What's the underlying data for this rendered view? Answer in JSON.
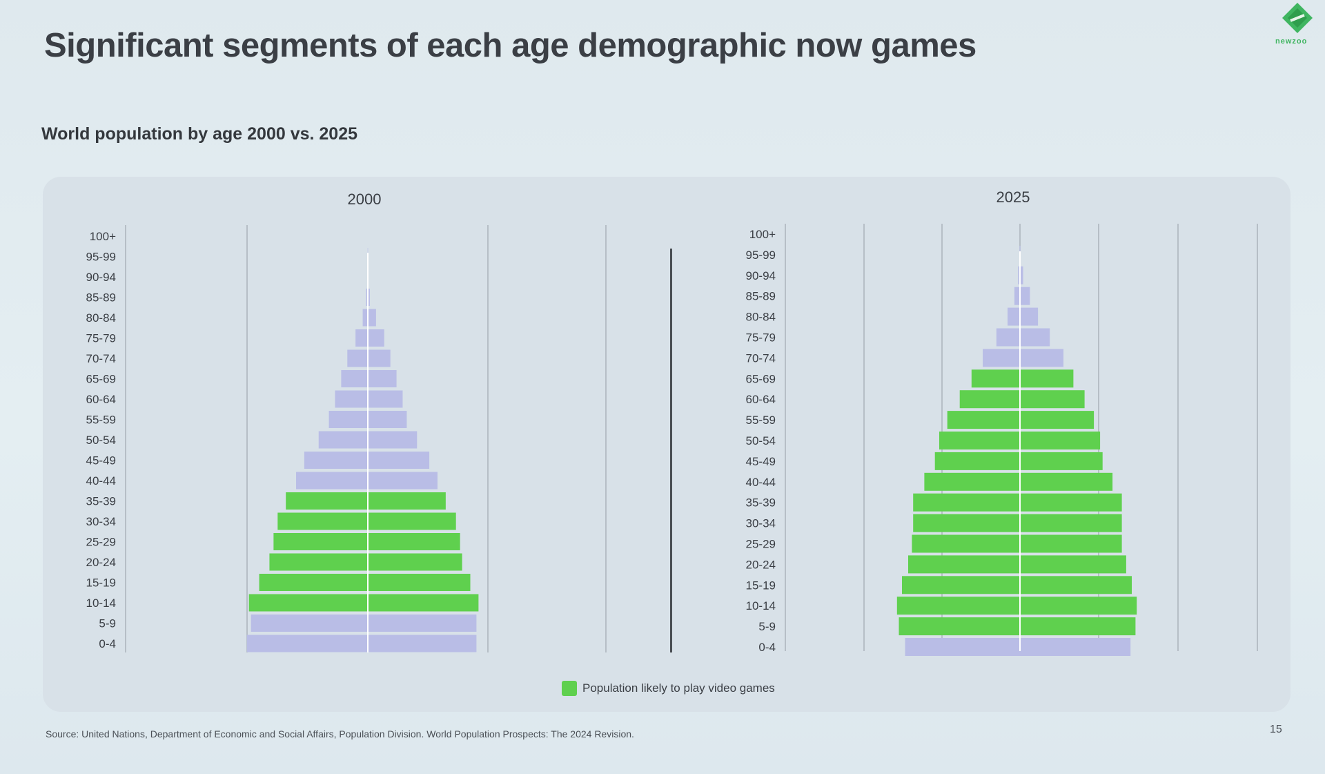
{
  "slide": {
    "title": "Significant segments of each age demographic now games",
    "subtitle": "World population by age 2000 vs. 2025",
    "source": "Source: United Nations, Department of Economic and Social Affairs, Population Division. World Population Prospects: The 2024 Revision.",
    "page_number": "15",
    "logo_text": "newzoo"
  },
  "colors": {
    "gamer": "#5fd04e",
    "non_gamer": "#b9bde6",
    "grid": "#aab3bb",
    "axis": "#ffffff"
  },
  "chart_data": [
    {
      "type": "bar",
      "orientation": "horizontal-population-pyramid",
      "title": "2000",
      "categories": [
        "100+",
        "95-99",
        "90-94",
        "85-89",
        "80-84",
        "75-79",
        "70-74",
        "65-69",
        "60-64",
        "55-59",
        "50-54",
        "45-49",
        "40-44",
        "35-39",
        "30-34",
        "25-29",
        "20-24",
        "15-19",
        "10-14",
        "5-9",
        "0-4"
      ],
      "series": [
        {
          "name": "Left half",
          "values": [
            0.02,
            0.08,
            0.3,
            0.8,
            2.5,
            6,
            10,
            13,
            16,
            19,
            24,
            31,
            35,
            40,
            44,
            46,
            48,
            53,
            58,
            57,
            59
          ]
        },
        {
          "name": "Right half",
          "values": [
            0.02,
            0.08,
            0.3,
            1,
            4,
            8,
            11,
            14,
            17,
            19,
            24,
            30,
            34,
            38,
            43,
            45,
            46,
            50,
            54,
            53,
            53
          ]
        }
      ],
      "gamer_categories": [
        "35-39",
        "30-34",
        "25-29",
        "20-24",
        "15-19",
        "10-14"
      ],
      "legend": "Population likely to play video games"
    },
    {
      "type": "bar",
      "orientation": "horizontal-population-pyramid",
      "title": "2025",
      "categories": [
        "100+",
        "95-99",
        "90-94",
        "85-89",
        "80-84",
        "75-79",
        "70-74",
        "65-69",
        "60-64",
        "55-59",
        "50-54",
        "45-49",
        "40-44",
        "35-39",
        "30-34",
        "25-29",
        "20-24",
        "15-19",
        "10-14",
        "5-9",
        "0-4"
      ],
      "series": [
        {
          "name": "Left half",
          "values": [
            0.1,
            0.6,
            3,
            9,
            20,
            38,
            60,
            78,
            97,
            117,
            130,
            137,
            154,
            172,
            172,
            174,
            180,
            190,
            198,
            195,
            185
          ]
        },
        {
          "name": "Right half",
          "values": [
            0.1,
            0.6,
            5,
            16,
            29,
            48,
            70,
            86,
            104,
            119,
            129,
            133,
            149,
            164,
            164,
            164,
            171,
            180,
            188,
            186,
            178
          ]
        }
      ],
      "gamer_categories": [
        "65-69",
        "60-64",
        "55-59",
        "50-54",
        "45-49",
        "40-44",
        "35-39",
        "30-34",
        "25-29",
        "20-24",
        "15-19",
        "10-14",
        "5-9"
      ],
      "legend": "Population likely to play video games"
    }
  ]
}
